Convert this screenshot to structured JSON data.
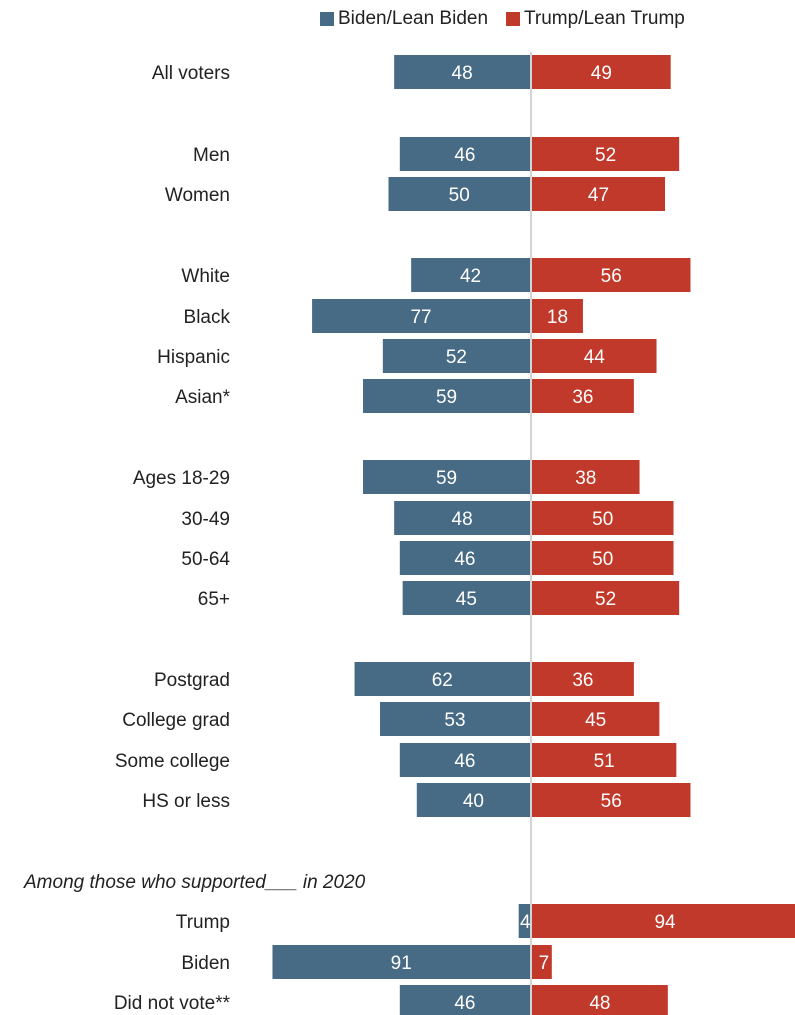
{
  "chart_data": {
    "type": "bar",
    "subtype": "diverging-horizontal",
    "series": [
      {
        "name": "Biden/Lean Biden",
        "color": "#476a85"
      },
      {
        "name": "Trump/Lean Trump",
        "color": "#c0392b"
      }
    ],
    "rows": [
      {
        "label": "All voters",
        "biden": 48,
        "trump": 49
      },
      {
        "label": "Men",
        "biden": 46,
        "trump": 52
      },
      {
        "label": "Women",
        "biden": 50,
        "trump": 47
      },
      {
        "label": "White",
        "biden": 42,
        "trump": 56
      },
      {
        "label": "Black",
        "biden": 77,
        "trump": 18
      },
      {
        "label": "Hispanic",
        "biden": 52,
        "trump": 44
      },
      {
        "label": "Asian*",
        "biden": 59,
        "trump": 36
      },
      {
        "label": "Ages 18-29",
        "biden": 59,
        "trump": 38
      },
      {
        "label": "30-49",
        "biden": 48,
        "trump": 50
      },
      {
        "label": "50-64",
        "biden": 46,
        "trump": 50
      },
      {
        "label": "65+",
        "biden": 45,
        "trump": 52
      },
      {
        "label": "Postgrad",
        "biden": 62,
        "trump": 36
      },
      {
        "label": "College grad",
        "biden": 53,
        "trump": 45
      },
      {
        "label": "Some college",
        "biden": 46,
        "trump": 51
      },
      {
        "label": "HS or less",
        "biden": 40,
        "trump": 56
      },
      {
        "label": "Trump",
        "biden": 4,
        "trump": 94
      },
      {
        "label": "Biden",
        "biden": 91,
        "trump": 7
      },
      {
        "label": "Did not vote**",
        "biden": 46,
        "trump": 48
      }
    ],
    "section_heading": "Among those who supported___ in 2020",
    "center_line": true,
    "legend_position": "top"
  }
}
